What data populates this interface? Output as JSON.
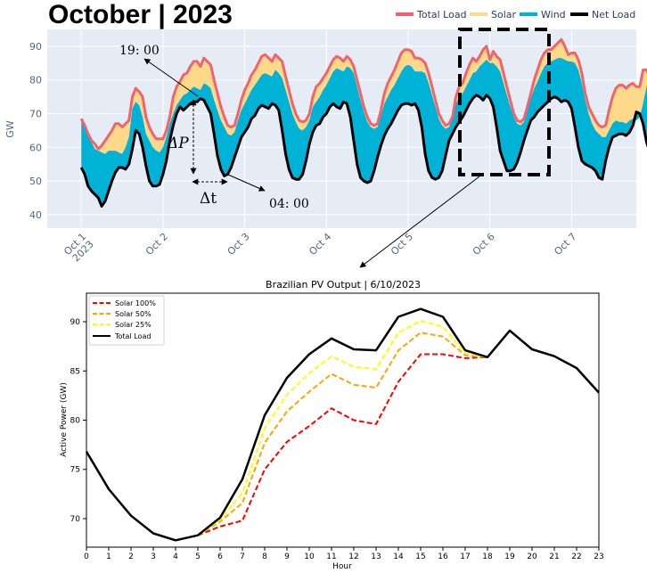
{
  "title": "October | 2023",
  "annotations": {
    "peak_time": "19: 00",
    "delta_p": "ΔP",
    "delta_t": "Δt",
    "trough_time": "04: 00"
  },
  "colors": {
    "total_load": "#F2636B",
    "solar": "#FFD98A",
    "wind": "#00B2D6",
    "net_load": "#000000",
    "plot_bg": "#E5ECF6",
    "solar100": "#FF0000",
    "solar50": "#FFA500",
    "solar25": "#FFFF00"
  },
  "chart_data": [
    {
      "type": "area",
      "title": "October | 2023",
      "ylabel": "GW",
      "xlabel": "",
      "ylim": [
        36,
        95
      ],
      "yticks": [
        40,
        50,
        60,
        70,
        80,
        90
      ],
      "xlim_hours": [
        -10,
        163
      ],
      "x_tick_labels": [
        "Oct 1\n2023",
        "Oct 2",
        "Oct 3",
        "Oct 4",
        "Oct 5",
        "Oct 6",
        "Oct 7"
      ],
      "legend": [
        "Total Load",
        "Solar",
        "Wind",
        "Net Load"
      ],
      "legend_position": "top-right",
      "grid": true,
      "series": [
        {
          "name": "Total Load",
          "values": [
            68.5,
            66.5,
            64,
            62,
            61,
            59.5,
            60.5,
            62,
            63.5,
            65,
            67,
            67,
            66,
            67,
            68,
            75,
            77.5,
            76.5,
            75,
            69,
            66,
            64,
            62.5,
            62.5,
            62.5,
            65,
            69,
            75,
            78,
            79.5,
            81.5,
            82,
            84,
            85.5,
            85.5,
            84,
            86.5,
            85.5,
            84.5,
            80,
            76,
            72,
            69,
            66.5,
            66,
            66.5,
            70,
            74,
            77,
            79,
            81.5,
            83,
            85,
            87,
            87.5,
            86.5,
            85.5,
            87.5,
            86.5,
            85.5,
            81,
            77,
            73,
            70,
            68,
            67.5,
            68,
            70,
            75,
            78,
            79,
            80.5,
            82,
            84,
            86,
            87,
            86.5,
            85.5,
            87,
            86,
            84,
            80,
            76,
            72,
            69,
            67,
            66.5,
            67,
            71,
            76,
            79,
            81,
            83,
            85.5,
            88,
            89,
            89,
            88.5,
            86.5,
            86.5,
            86,
            85,
            82,
            78,
            74,
            70,
            68,
            66.5,
            67,
            69,
            75,
            78,
            79,
            82,
            84.5,
            86.5,
            85.5,
            87,
            89,
            90,
            86,
            88.5,
            87,
            86,
            82,
            78,
            74,
            70,
            68,
            67.5,
            68.5,
            72,
            76,
            80,
            83,
            86,
            88,
            89,
            89,
            90,
            91,
            92,
            90,
            87.5,
            88,
            88,
            86,
            82,
            76,
            72,
            70,
            68,
            66.5,
            66,
            66.5,
            71,
            75,
            77.5,
            78.5,
            78.5,
            77.5,
            78.5,
            79,
            78,
            78,
            83,
            83,
            81,
            78,
            74.5
          ]
        },
        {
          "name": "Wind",
          "values": [
            68,
            67,
            65,
            61.5,
            59.5,
            59,
            58.5,
            58,
            59,
            59,
            59,
            58.5,
            58,
            60,
            63,
            71.5,
            73.5,
            72.5,
            69,
            64,
            62,
            60,
            59,
            58.5,
            60,
            63,
            67,
            70,
            72.5,
            74,
            75.5,
            76,
            77,
            78,
            77.5,
            77,
            79,
            78.5,
            77.5,
            74,
            71,
            68,
            66,
            64,
            63.5,
            64.5,
            68,
            71,
            73,
            75,
            77,
            78.5,
            80,
            81.5,
            82,
            81.5,
            81,
            83,
            82,
            80.5,
            77,
            73.5,
            70,
            67.5,
            65.5,
            65,
            66,
            68,
            72,
            73.5,
            75,
            77,
            78.5,
            80.5,
            82.5,
            83.5,
            83,
            82.5,
            84,
            83.5,
            82,
            78,
            74,
            70.5,
            67.5,
            66,
            65.5,
            66,
            69.5,
            73,
            75,
            77,
            78.5,
            80.5,
            82.5,
            84,
            84.5,
            84,
            82.5,
            82.5,
            82.5,
            82,
            79,
            75.5,
            72,
            68.5,
            66.5,
            65.5,
            66,
            68.5,
            73,
            75,
            76,
            78,
            80,
            82,
            82.5,
            84,
            85,
            86,
            85,
            85,
            84,
            82.5,
            79,
            75.5,
            72,
            69,
            67,
            66.5,
            67.5,
            71,
            74.5,
            77.5,
            79.5,
            82,
            84,
            85,
            85.5,
            86,
            86.5,
            86.5,
            86,
            85.5,
            85.5,
            85,
            83,
            79,
            74,
            70,
            67,
            65,
            64,
            63,
            63,
            65,
            67,
            68,
            67.5,
            67.5,
            67,
            68,
            68.5,
            68,
            69,
            73,
            78,
            81.5,
            80,
            76,
            73
          ]
        },
        {
          "name": "Net Load",
          "values": [
            54,
            52,
            48.5,
            47,
            46,
            45,
            42.5,
            44,
            47,
            50,
            52.5,
            54,
            54,
            53.5,
            55,
            59.5,
            65,
            64,
            60,
            54.5,
            50,
            48.5,
            48.5,
            49,
            52,
            56,
            62,
            66.5,
            70,
            72,
            71,
            72,
            73,
            73.5,
            73.5,
            74.5,
            74,
            72,
            70,
            64,
            57.5,
            53.5,
            51.5,
            52,
            54,
            57,
            60,
            63,
            64.5,
            66,
            68.5,
            69.5,
            71.5,
            72.5,
            72,
            71.5,
            73,
            72.5,
            71,
            65,
            58,
            53.5,
            51,
            50.5,
            50.5,
            52,
            56,
            61,
            64.5,
            66.5,
            67,
            69,
            70,
            72,
            73,
            72,
            71.5,
            73.5,
            73,
            69,
            62,
            55,
            51,
            50,
            49.5,
            50,
            53,
            57,
            60.5,
            63.5,
            65.5,
            67,
            69,
            71,
            72.5,
            73,
            73,
            72.5,
            73,
            71,
            66,
            58,
            53,
            51,
            50.5,
            51,
            53,
            57.5,
            62,
            64,
            66,
            67.5,
            69,
            71,
            73,
            74.5,
            75.5,
            75,
            74,
            75.5,
            74.5,
            72,
            66,
            59,
            56,
            53,
            53,
            53.5,
            55.5,
            58.5,
            62,
            65,
            68,
            69,
            70.5,
            71.5,
            72.5,
            73.5,
            74.5,
            75,
            74.5,
            73.5,
            74,
            73.5,
            71.5,
            66,
            60,
            56,
            55,
            54.5,
            54,
            53,
            51,
            50.5,
            56,
            60,
            63,
            63.5,
            64,
            64,
            63.5,
            64.5,
            66.5,
            70.5,
            70,
            67,
            61.5,
            58.5
          ]
        }
      ]
    },
    {
      "type": "line",
      "title": "Brazilian PV Output | 6/10/2023",
      "xlabel": "Hour",
      "ylabel": "Active Power (GW)",
      "xlim": [
        0,
        23
      ],
      "ylim": [
        67.1,
        92.9
      ],
      "yticks": [
        70,
        75,
        80,
        85,
        90
      ],
      "legend_position": "top-left",
      "x": [
        0,
        1,
        2,
        3,
        4,
        5,
        6,
        7,
        8,
        9,
        10,
        11,
        12,
        13,
        14,
        15,
        16,
        17,
        18,
        19,
        20,
        21,
        22,
        23
      ],
      "series": [
        {
          "name": "Solar 100%",
          "x": [
            5,
            6,
            7,
            8,
            9,
            10,
            11,
            12,
            13,
            14,
            15,
            16,
            17,
            18
          ],
          "values": [
            68.3,
            69.2,
            69.8,
            75.0,
            77.8,
            79.4,
            81.2,
            80.0,
            79.6,
            83.9,
            86.7,
            86.7,
            86.3,
            86.4
          ]
        },
        {
          "name": "Solar 50%",
          "x": [
            5,
            6,
            7,
            8,
            9,
            10,
            11,
            12,
            13,
            14,
            15,
            16,
            17,
            18
          ],
          "values": [
            68.3,
            69.7,
            71.6,
            77.7,
            80.9,
            82.9,
            84.7,
            83.6,
            83.3,
            87.1,
            88.9,
            88.5,
            86.6,
            86.4
          ]
        },
        {
          "name": "Solar 25%",
          "x": [
            5,
            6,
            7,
            8,
            9,
            10,
            11,
            12,
            13,
            14,
            15,
            16,
            17,
            18
          ],
          "values": [
            68.3,
            69.9,
            72.6,
            79.2,
            82.6,
            84.8,
            86.5,
            85.4,
            85.2,
            88.9,
            90.1,
            89.5,
            86.8,
            86.4
          ]
        },
        {
          "name": "Total Load",
          "x": [
            0,
            1,
            2,
            3,
            4,
            5,
            6,
            7,
            8,
            9,
            10,
            11,
            12,
            13,
            14,
            15,
            16,
            17,
            18,
            19,
            20,
            21,
            22,
            23
          ],
          "values": [
            76.8,
            73.0,
            70.3,
            68.5,
            67.8,
            68.3,
            70.1,
            74.0,
            80.5,
            84.3,
            86.7,
            88.3,
            87.2,
            87.1,
            90.5,
            91.3,
            90.5,
            87.1,
            86.4,
            89.1,
            87.2,
            86.5,
            85.3,
            82.8
          ]
        }
      ]
    }
  ]
}
